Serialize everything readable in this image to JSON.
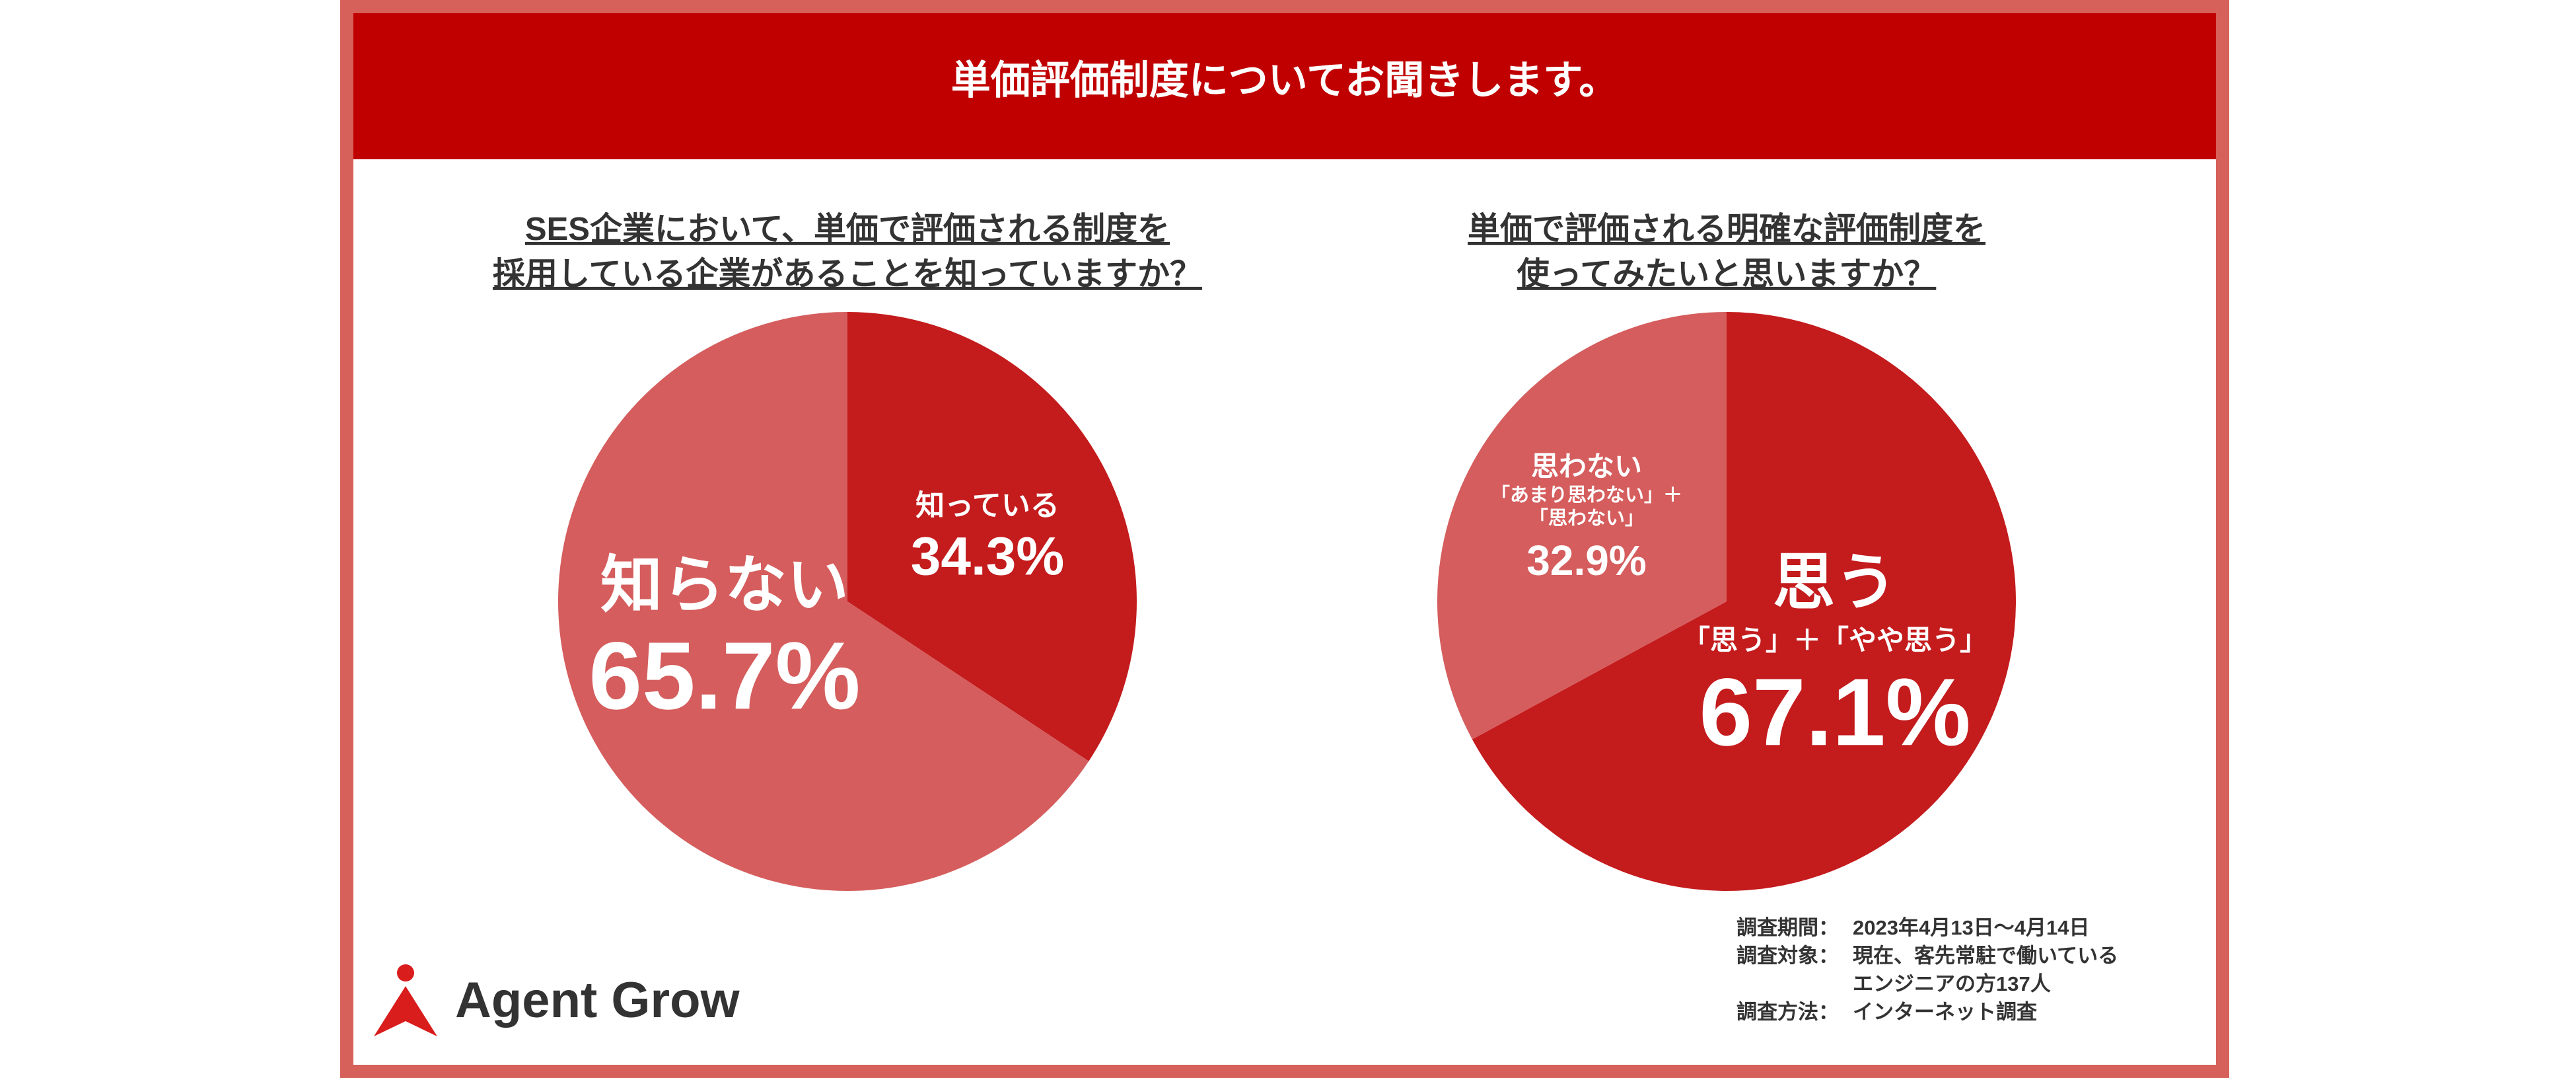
{
  "header": {
    "title": "単価評価制度についてお聞きします。"
  },
  "chart_data": [
    {
      "type": "pie",
      "title": [
        "SES企業において、単価で評価される制度を",
        "採用している企業があることを知っていますか？"
      ],
      "categories": [
        "知っている",
        "知らない"
      ],
      "values": [
        34.3,
        65.7
      ],
      "value_labels": [
        "34.3%",
        "65.7%"
      ],
      "colors": [
        "#c41b1d",
        "#d55d5d"
      ]
    },
    {
      "type": "pie",
      "title": [
        "単価で評価される明確な評価制度を",
        "使ってみたいと思いますか？"
      ],
      "categories": [
        "思う",
        "思わない"
      ],
      "category_notes": [
        [
          "「思う」＋「やや思う」"
        ],
        [
          "「あまり思わない」＋",
          "「思わない」"
        ]
      ],
      "values": [
        67.1,
        32.9
      ],
      "value_labels": [
        "67.1%",
        "32.9%"
      ],
      "colors": [
        "#c41b1d",
        "#d55d5d"
      ]
    }
  ],
  "survey": [
    {
      "label": "調査期間：",
      "value": [
        "2023年4月13日〜4月14日"
      ]
    },
    {
      "label": "調査対象：",
      "value": [
        "現在、客先常駐で働いている",
        "エンジニアの方137人"
      ]
    },
    {
      "label": "調査方法：",
      "value": [
        "インターネット調査"
      ]
    }
  ],
  "logo": "Agent Grow"
}
